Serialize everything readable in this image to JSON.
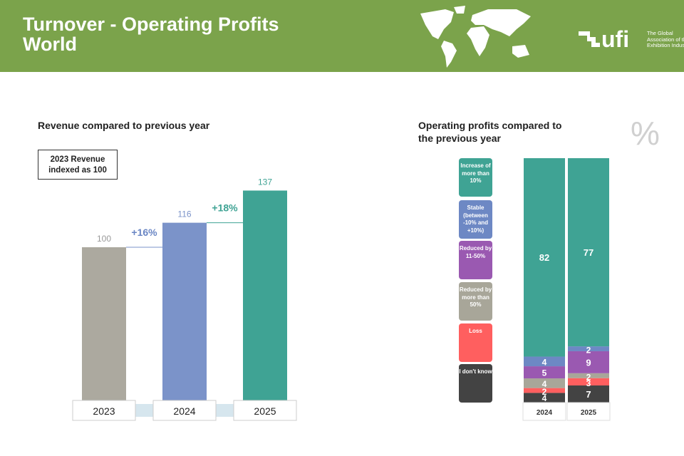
{
  "header": {
    "title_line1": "Turnover - Operating Profits",
    "title_line2": "World",
    "logo_word": "ufi",
    "logo_tagline": [
      "The Global",
      "Association of the",
      "Exhibition Industry"
    ]
  },
  "chart_data": [
    {
      "type": "bar",
      "title": "Revenue compared to previous year",
      "note": "2023 Revenue indexed as 100",
      "categories": [
        "2023",
        "2024",
        "2025"
      ],
      "values": [
        100,
        116,
        137
      ],
      "colors": [
        "#aca99f",
        "#7b93c9",
        "#3fa394"
      ],
      "changes": [
        {
          "label": "+16%",
          "color": "#6a86c4"
        },
        {
          "label": "+18%",
          "color": "#3fa394"
        }
      ],
      "ylim": [
        0,
        140
      ]
    },
    {
      "type": "bar",
      "stacked": true,
      "title_line1": "Operating profits compared to",
      "title_line2": "the previous year",
      "unit": "%",
      "categories": [
        "2024",
        "2025"
      ],
      "series": [
        {
          "name": "I don't know",
          "color": "#434343",
          "values": [
            4,
            7
          ]
        },
        {
          "name": "Loss",
          "color": "#ff5f5f",
          "values": [
            2,
            3
          ]
        },
        {
          "name": "Reduced by more than 50%",
          "color": "#a8a699",
          "values": [
            4,
            2
          ]
        },
        {
          "name": "Reduced by 11-50%",
          "color": "#9a59b1",
          "values": [
            5,
            9
          ]
        },
        {
          "name": "Stable (between -10% and +10%)",
          "color": "#6d88c4",
          "values": [
            4,
            2
          ]
        },
        {
          "name": "Increase of more than 10%",
          "color": "#3fa394",
          "values": [
            82,
            77
          ]
        }
      ]
    }
  ]
}
